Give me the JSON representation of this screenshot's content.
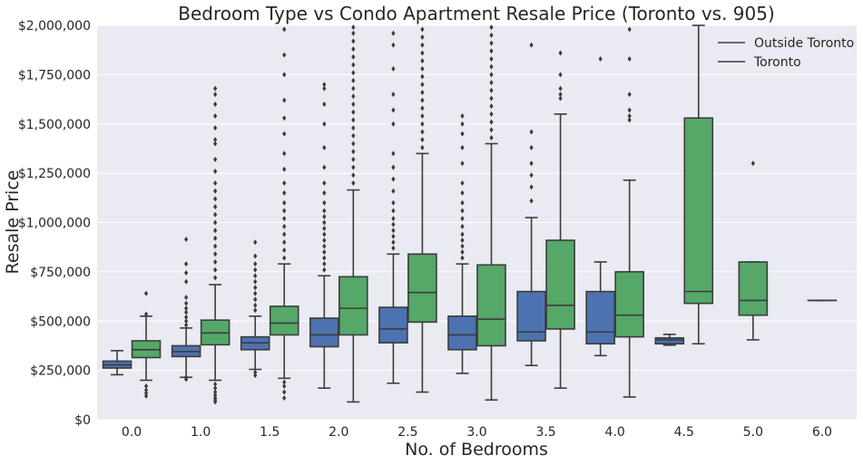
{
  "chart_data": {
    "type": "box",
    "title": "Bedroom Type vs Condo Apartment Resale Price (Toronto vs. 905)",
    "xlabel": "No. of Bedrooms",
    "ylabel": "Resale Price",
    "ylim": [
      0,
      2000000
    ],
    "yticks": [
      0,
      250000,
      500000,
      750000,
      1000000,
      1250000,
      1500000,
      1750000,
      2000000
    ],
    "ytick_labels": [
      "$0",
      "$250,000",
      "$500,000",
      "$750,000",
      "$1,000,000",
      "$1,250,000",
      "$1,500,000",
      "$1,750,000",
      "$2,000,000"
    ],
    "categories": [
      "0.0",
      "1.0",
      "1.5",
      "2.0",
      "2.5",
      "3.0",
      "3.5",
      "4.0",
      "4.5",
      "5.0",
      "6.0"
    ],
    "legend_position": "top-right",
    "grid": true,
    "colors": {
      "background": "#eaeaf2",
      "grid": "#ffffff",
      "line": "#3c3c3c"
    },
    "series": [
      {
        "name": "Outside Toronto",
        "color": "#4c72b0",
        "boxes": [
          {
            "category": "0.0",
            "whisker_low": 228000,
            "q1": 262000,
            "median": 278000,
            "q3": 297000,
            "whisker_high": 350000,
            "outliers": []
          },
          {
            "category": "1.0",
            "whisker_low": 215000,
            "q1": 320000,
            "median": 345000,
            "q3": 375000,
            "whisker_high": 465000,
            "outliers": [
              205000,
              215000,
              480000,
              500000,
              520000,
              545000,
              565000,
              590000,
              620000,
              700000,
              745000,
              790000,
              915000
            ]
          },
          {
            "category": "1.5",
            "whisker_low": 255000,
            "q1": 355000,
            "median": 390000,
            "q3": 420000,
            "whisker_high": 525000,
            "outliers": [
              225000,
              240000,
              555000,
              580000,
              610000,
              640000,
              670000,
              700000,
              730000,
              760000,
              790000,
              830000,
              900000
            ]
          },
          {
            "category": "2.0",
            "whisker_low": 160000,
            "q1": 370000,
            "median": 430000,
            "q3": 515000,
            "whisker_high": 730000,
            "outliers": [
              760000,
              790000,
              820000,
              850000,
              880000,
              910000,
              940000,
              970000,
              1000000,
              1030000,
              1060000,
              1100000,
              1150000,
              1200000,
              1280000,
              1380000,
              1500000,
              1600000,
              1680000,
              1700000
            ]
          },
          {
            "category": "2.5",
            "whisker_low": 185000,
            "q1": 390000,
            "median": 460000,
            "q3": 570000,
            "whisker_high": 840000,
            "outliers": [
              870000,
              900000,
              930000,
              960000,
              990000,
              1020000,
              1060000,
              1100000,
              1160000,
              1220000,
              1280000,
              1350000,
              1500000,
              1570000,
              1650000,
              1780000,
              1900000,
              1960000
            ]
          },
          {
            "category": "3.0",
            "whisker_low": 235000,
            "q1": 355000,
            "median": 430000,
            "q3": 525000,
            "whisker_high": 790000,
            "outliers": [
              820000,
              850000,
              880000,
              910000,
              940000,
              980000,
              1020000,
              1060000,
              1100000,
              1150000,
              1200000,
              1300000,
              1380000,
              1450000,
              1500000,
              1540000
            ]
          },
          {
            "category": "3.5",
            "whisker_low": 275000,
            "q1": 400000,
            "median": 445000,
            "q3": 650000,
            "whisker_high": 1025000,
            "outliers": [
              1110000,
              1180000,
              1240000,
              1300000,
              1380000,
              1460000,
              1900000
            ]
          },
          {
            "category": "4.0",
            "whisker_low": 325000,
            "q1": 385000,
            "median": 445000,
            "q3": 650000,
            "whisker_high": 800000,
            "outliers": [
              1830000
            ]
          },
          {
            "category": "4.5",
            "whisker_low": 378000,
            "q1": 385000,
            "median": 405000,
            "q3": 415000,
            "whisker_high": 433000,
            "outliers": []
          }
        ]
      },
      {
        "name": "Toronto",
        "color": "#55a868",
        "boxes": [
          {
            "category": "0.0",
            "whisker_low": 200000,
            "q1": 315000,
            "median": 355000,
            "q3": 400000,
            "whisker_high": 525000,
            "outliers": [
              120000,
              135000,
              150000,
              170000,
              535000,
              640000
            ]
          },
          {
            "category": "1.0",
            "whisker_low": 200000,
            "q1": 380000,
            "median": 440000,
            "q3": 505000,
            "whisker_high": 685000,
            "outliers": [
              90000,
              100000,
              110000,
              125000,
              140000,
              160000,
              180000,
              720000,
              760000,
              800000,
              840000,
              880000,
              920000,
              960000,
              1000000,
              1040000,
              1080000,
              1120000,
              1160000,
              1200000,
              1260000,
              1320000,
              1400000,
              1420000,
              1480000,
              1540000,
              1600000,
              1650000,
              1680000
            ]
          },
          {
            "category": "1.5",
            "whisker_low": 210000,
            "q1": 430000,
            "median": 490000,
            "q3": 575000,
            "whisker_high": 790000,
            "outliers": [
              110000,
              140000,
              170000,
              190000,
              820000,
              860000,
              900000,
              940000,
              980000,
              1020000,
              1060000,
              1100000,
              1150000,
              1200000,
              1270000,
              1350000,
              1450000,
              1530000,
              1620000,
              1750000,
              1850000,
              1980000
            ]
          },
          {
            "category": "2.0",
            "whisker_low": 90000,
            "q1": 430000,
            "median": 565000,
            "q3": 725000,
            "whisker_high": 1165000,
            "outliers": [
              1200000,
              1240000,
              1280000,
              1320000,
              1360000,
              1400000,
              1440000,
              1480000,
              1520000,
              1560000,
              1600000,
              1640000,
              1680000,
              1720000,
              1760000,
              1800000,
              1840000,
              1880000,
              1920000,
              1960000,
              1990000
            ]
          },
          {
            "category": "2.5",
            "whisker_low": 140000,
            "q1": 495000,
            "median": 645000,
            "q3": 840000,
            "whisker_high": 1350000,
            "outliers": [
              1380000,
              1420000,
              1460000,
              1500000,
              1540000,
              1580000,
              1620000,
              1660000,
              1700000,
              1740000,
              1780000,
              1820000,
              1860000,
              1900000,
              1940000,
              1980000
            ]
          },
          {
            "category": "3.0",
            "whisker_low": 100000,
            "q1": 375000,
            "median": 510000,
            "q3": 785000,
            "whisker_high": 1400000,
            "outliers": [
              1430000,
              1470000,
              1510000,
              1550000,
              1590000,
              1630000,
              1670000,
              1710000,
              1750000,
              1790000,
              1830000,
              1870000,
              1910000,
              1950000,
              1990000
            ]
          },
          {
            "category": "3.5",
            "whisker_low": 160000,
            "q1": 460000,
            "median": 580000,
            "q3": 910000,
            "whisker_high": 1550000,
            "outliers": [
              1630000,
              1650000,
              1680000,
              1750000,
              1860000
            ]
          },
          {
            "category": "4.0",
            "whisker_low": 115000,
            "q1": 420000,
            "median": 530000,
            "q3": 750000,
            "whisker_high": 1215000,
            "outliers": [
              1520000,
              1540000,
              1570000,
              1650000,
              1830000,
              1980000
            ]
          },
          {
            "category": "4.5",
            "whisker_low": 385000,
            "q1": 590000,
            "median": 650000,
            "q3": 1530000,
            "whisker_high": 2000000,
            "outliers": []
          },
          {
            "category": "5.0",
            "whisker_low": 405000,
            "q1": 530000,
            "median": 605000,
            "q3": 800000,
            "whisker_high": 800000,
            "outliers": [
              1300000
            ]
          },
          {
            "category": "6.0",
            "whisker_low": 605000,
            "q1": 605000,
            "median": 605000,
            "q3": 605000,
            "whisker_high": 605000,
            "outliers": []
          }
        ]
      }
    ]
  }
}
